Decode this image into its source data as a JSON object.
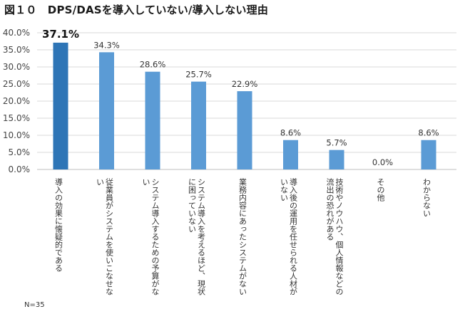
{
  "title": "図１０　DPS/DASを導入していない/導入しない理由",
  "note": "N=35",
  "colors": {
    "bar": "#5b9bd5",
    "highlight": "#2e75b6",
    "grid": "#d9d9d9",
    "axis": "#bfbfbf"
  },
  "chart_data": {
    "type": "bar",
    "categories": [
      "導入の効果に懐疑的である",
      "従業員がシステムを使いこなせない",
      "システム導入するための予算がない",
      "システム導入を考えるほど、現状に困っていない",
      "業務内容にあったシステムがない",
      "導入後の運用を任せられる人材がいない",
      "技術やノウハウ、個人情報などの流出の恐れがある",
      "その他",
      "わからない"
    ],
    "category_lines": [
      [
        "導入の効果に懐疑的である"
      ],
      [
        "従業員がシステムを使いこなせな",
        "い"
      ],
      [
        "システム導入するための予算がな",
        "い"
      ],
      [
        "システム導入を考えるほど、現状",
        "に困っていない"
      ],
      [
        "業務内容にあったシステムがない"
      ],
      [
        "導入後の運用を任せられる人材が",
        "いない"
      ],
      [
        "技術やノウハウ、個人情報などの",
        "流出の恐れがある"
      ],
      [
        "その他"
      ],
      [
        "わからない"
      ]
    ],
    "values": [
      37.1,
      34.3,
      28.6,
      25.7,
      22.9,
      8.6,
      5.7,
      0.0,
      8.6
    ],
    "value_labels": [
      "37.1%",
      "34.3%",
      "28.6%",
      "25.7%",
      "22.9%",
      "8.6%",
      "5.7%",
      "0.0%",
      "8.6%"
    ],
    "highlight_index": 0,
    "ylim": [
      0,
      40
    ],
    "yticks": [
      0,
      5,
      10,
      15,
      20,
      25,
      30,
      35,
      40
    ],
    "ytick_labels": [
      "0.0%",
      "5.0%",
      "10.0%",
      "15.0%",
      "20.0%",
      "25.0%",
      "30.0%",
      "35.0%",
      "40.0%"
    ],
    "grid": true,
    "legend": "none"
  }
}
